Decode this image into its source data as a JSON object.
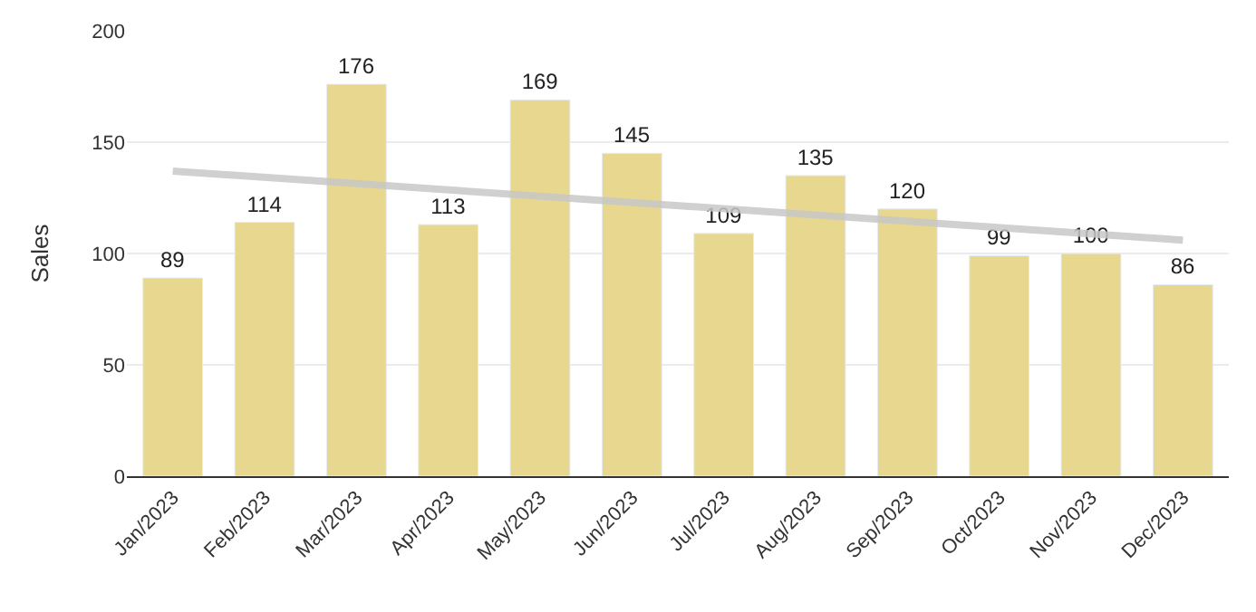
{
  "chart_data": {
    "type": "bar",
    "ylabel": "Sales",
    "categories": [
      "Jan/2023",
      "Feb/2023",
      "Mar/2023",
      "Apr/2023",
      "May/2023",
      "Jun/2023",
      "Jul/2023",
      "Aug/2023",
      "Sep/2023",
      "Oct/2023",
      "Nov/2023",
      "Dec/2023"
    ],
    "series": [
      {
        "color": "#e8d88f",
        "values": [
          89,
          114,
          176,
          113,
          169,
          145,
          109,
          135,
          120,
          99,
          100,
          86
        ],
        "value_labels": [
          "89",
          "114",
          "176",
          "113",
          "169",
          "145",
          "109",
          "135",
          "120",
          "99",
          "100",
          "86"
        ]
      },
      {
        "type": "line",
        "color": "#c8c8c8",
        "x": [
          "Jan/2023",
          "Dec/2023"
        ],
        "values": [
          137,
          106
        ]
      }
    ],
    "ylim": [
      0,
      200
    ],
    "yticks": [
      0,
      50,
      100,
      150,
      200
    ],
    "grid": "y",
    "legend": false
  }
}
